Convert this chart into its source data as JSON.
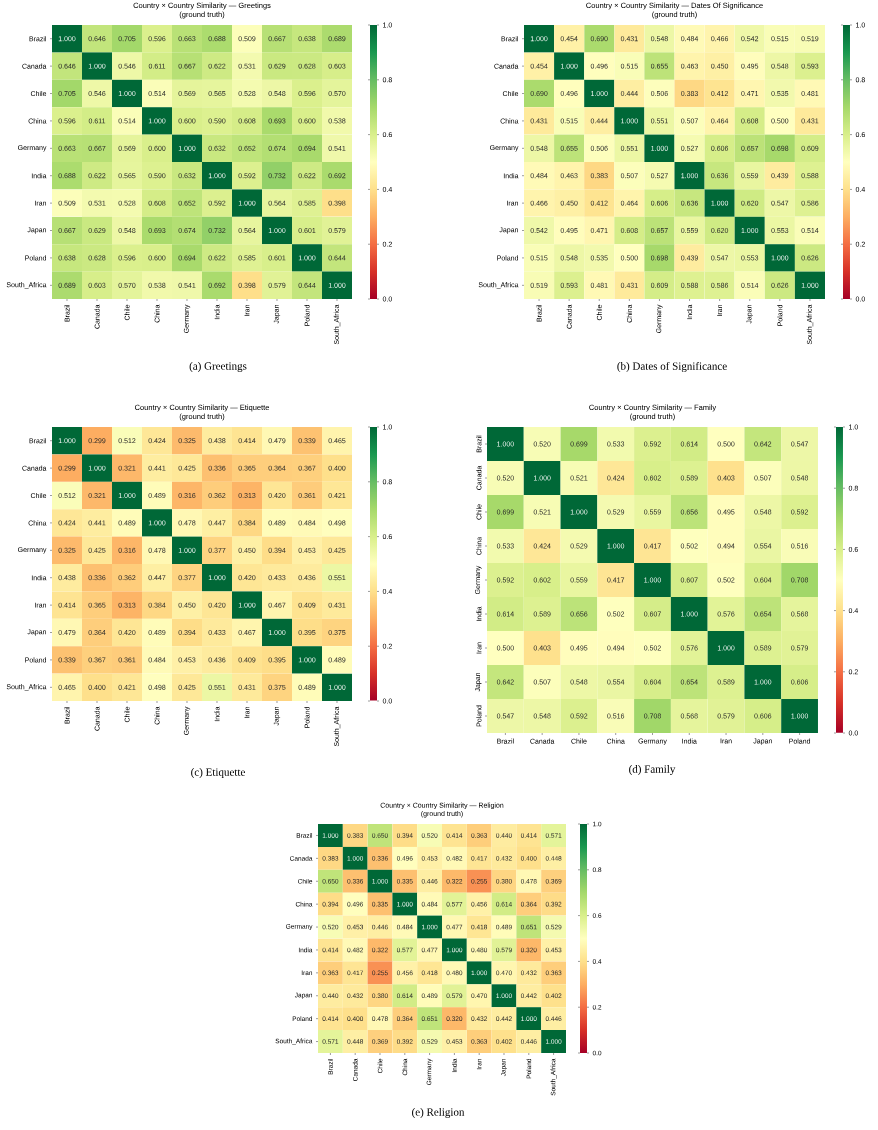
{
  "chart_data": [
    {
      "type": "heatmap",
      "title": "Country × Country Similarity — Greetings",
      "subtitle": "(ground truth)",
      "annotations": [
        "(a) Greetings"
      ],
      "categories": [
        "Brazil",
        "Canada",
        "Chile",
        "China",
        "Germany",
        "India",
        "Iran",
        "Japan",
        "Poland",
        "South_Africa"
      ],
      "y_categories": [
        "Brazil",
        "Canada",
        "Chile",
        "China",
        "Germany",
        "India",
        "Iran",
        "Japan",
        "Poland",
        "South_Africa"
      ],
      "clim": [
        0,
        1
      ],
      "cticks": [
        {
          "value": 0,
          "label": "0.0"
        },
        {
          "value": 0.2,
          "label": "0.2"
        },
        {
          "value": 0.4,
          "label": "0.4"
        },
        {
          "value": 0.6,
          "label": "0.6"
        },
        {
          "value": 0.8,
          "label": "0.8"
        },
        {
          "value": 1,
          "label": "1.0"
        }
      ],
      "cells": [
        [
          1.0,
          0.646,
          0.705,
          0.596,
          0.663,
          0.688,
          0.509,
          0.667,
          0.638,
          0.689
        ],
        [
          0.646,
          1.0,
          0.546,
          0.611,
          0.667,
          0.622,
          0.531,
          0.629,
          0.628,
          0.603
        ],
        [
          0.705,
          0.546,
          1.0,
          0.514,
          0.569,
          0.565,
          0.528,
          0.548,
          0.596,
          0.57
        ],
        [
          0.596,
          0.611,
          0.514,
          1.0,
          0.6,
          0.59,
          0.608,
          0.693,
          0.6,
          0.538
        ],
        [
          0.663,
          0.667,
          0.569,
          0.6,
          1.0,
          0.632,
          0.652,
          0.674,
          0.694,
          0.541
        ],
        [
          0.688,
          0.622,
          0.565,
          0.59,
          0.632,
          1.0,
          0.592,
          0.732,
          0.622,
          0.692
        ],
        [
          0.509,
          0.531,
          0.528,
          0.608,
          0.652,
          0.592,
          1.0,
          0.564,
          0.585,
          0.398
        ],
        [
          0.667,
          0.629,
          0.548,
          0.693,
          0.674,
          0.732,
          0.564,
          1.0,
          0.601,
          0.579
        ],
        [
          0.638,
          0.628,
          0.596,
          0.6,
          0.694,
          0.622,
          0.585,
          0.601,
          1.0,
          0.644
        ],
        [
          0.689,
          0.603,
          0.57,
          0.538,
          0.541,
          0.692,
          0.398,
          0.579,
          0.644,
          1.0
        ]
      ],
      "cell_labels": [
        [
          "1.000",
          "0.646",
          "0.705",
          "0.596",
          "0.663",
          "0.688",
          "0.509",
          "0.667",
          "0.638",
          "0.689"
        ],
        [
          "0.646",
          "1.000",
          "0.546",
          "0.611",
          "0.667",
          "0.622",
          "0.531",
          "0.629",
          "0.628",
          "0.603"
        ],
        [
          "0.705",
          "0.546",
          "1.000",
          "0.514",
          "0.569",
          "0.565",
          "0.528",
          "0.548",
          "0.596",
          "0.570"
        ],
        [
          "0.596",
          "0.611",
          "0.514",
          "1.000",
          "0.600",
          "0.590",
          "0.608",
          "0.693",
          "0.600",
          "0.538"
        ],
        [
          "0.663",
          "0.667",
          "0.569",
          "0.600",
          "1.000",
          "0.632",
          "0.652",
          "0.674",
          "0.694",
          "0.541"
        ],
        [
          "0.688",
          "0.622",
          "0.565",
          "0.590",
          "0.632",
          "1.000",
          "0.592",
          "0.732",
          "0.622",
          "0.692"
        ],
        [
          "0.509",
          "0.531",
          "0.528",
          "0.608",
          "0.652",
          "0.592",
          "1.000",
          "0.564",
          "0.585",
          "0.398"
        ],
        [
          "0.667",
          "0.629",
          "0.548",
          "0.693",
          "0.674",
          "0.732",
          "0.564",
          "1.000",
          "0.601",
          "0.579"
        ],
        [
          "0.638",
          "0.628",
          "0.596",
          "0.600",
          "0.694",
          "0.622",
          "0.585",
          "0.601",
          "1.000",
          "0.644"
        ],
        [
          "0.689",
          "0.603",
          "0.570",
          "0.538",
          "0.541",
          "0.692",
          "0.398",
          "0.579",
          "0.644",
          "1.000"
        ]
      ]
    },
    {
      "type": "heatmap",
      "title": "Country × Country Similarity — Dates Of Significance",
      "subtitle": "(ground truth)",
      "annotations": [
        "(b) Dates of Significance"
      ],
      "categories": [
        "Brazil",
        "Canada",
        "Chile",
        "China",
        "Germany",
        "India",
        "Iran",
        "Japan",
        "Poland",
        "South_Africa"
      ],
      "y_categories": [
        "Brazil",
        "Canada",
        "Chile",
        "China",
        "Germany",
        "India",
        "Iran",
        "Japan",
        "Poland",
        "South_Africa"
      ],
      "clim": [
        0,
        1
      ],
      "cticks": [
        {
          "value": 0,
          "label": "0.0"
        },
        {
          "value": 0.2,
          "label": "0.2"
        },
        {
          "value": 0.4,
          "label": "0.4"
        },
        {
          "value": 0.6,
          "label": "0.6"
        },
        {
          "value": 0.8,
          "label": "0.8"
        },
        {
          "value": 1,
          "label": "1.0"
        }
      ],
      "cells": [
        [
          1.0,
          0.454,
          0.69,
          0.431,
          0.548,
          0.484,
          0.466,
          0.542,
          0.515,
          0.519
        ],
        [
          0.454,
          1.0,
          0.496,
          0.515,
          0.655,
          0.463,
          0.45,
          0.495,
          0.548,
          0.593
        ],
        [
          0.69,
          0.496,
          1.0,
          0.444,
          0.506,
          0.383,
          0.412,
          0.471,
          0.535,
          0.481
        ],
        [
          0.431,
          0.515,
          0.444,
          1.0,
          0.551,
          0.507,
          0.464,
          0.608,
          0.5,
          0.431
        ],
        [
          0.548,
          0.655,
          0.506,
          0.551,
          1.0,
          0.527,
          0.606,
          0.657,
          0.698,
          0.609
        ],
        [
          0.484,
          0.463,
          0.383,
          0.507,
          0.527,
          1.0,
          0.636,
          0.559,
          0.439,
          0.588
        ],
        [
          0.466,
          0.45,
          0.412,
          0.464,
          0.606,
          0.636,
          1.0,
          0.62,
          0.547,
          0.586
        ],
        [
          0.542,
          0.495,
          0.471,
          0.608,
          0.657,
          0.559,
          0.62,
          1.0,
          0.553,
          0.514
        ],
        [
          0.515,
          0.548,
          0.535,
          0.5,
          0.698,
          0.439,
          0.547,
          0.553,
          1.0,
          0.626
        ],
        [
          0.519,
          0.593,
          0.481,
          0.431,
          0.609,
          0.588,
          0.586,
          0.514,
          0.626,
          1.0
        ]
      ],
      "cell_labels": [
        [
          "1.000",
          "0.454",
          "0.690",
          "0.431",
          "0.548",
          "0.484",
          "0.466",
          "0.542",
          "0.515",
          "0.519"
        ],
        [
          "0.454",
          "1.000",
          "0.496",
          "0.515",
          "0.655",
          "0.463",
          "0.450",
          "0.495",
          "0.548",
          "0.593"
        ],
        [
          "0.690",
          "0.496",
          "1.000",
          "0.444",
          "0.506",
          "0.383",
          "0.412",
          "0.471",
          "0.535",
          "0.481"
        ],
        [
          "0.431",
          "0.515",
          "0.444",
          "1.000",
          "0.551",
          "0.507",
          "0.464",
          "0.608",
          "0.500",
          "0.431"
        ],
        [
          "0.548",
          "0.655",
          "0.506",
          "0.551",
          "1.000",
          "0.527",
          "0.606",
          "0.657",
          "0.698",
          "0.609"
        ],
        [
          "0.484",
          "0.463",
          "0.383",
          "0.507",
          "0.527",
          "1.000",
          "0.636",
          "0.559",
          "0.439",
          "0.588"
        ],
        [
          "0.466",
          "0.450",
          "0.412",
          "0.464",
          "0.606",
          "0.636",
          "1.000",
          "0.620",
          "0.547",
          "0.586"
        ],
        [
          "0.542",
          "0.495",
          "0.471",
          "0.608",
          "0.657",
          "0.559",
          "0.620",
          "1.000",
          "0.553",
          "0.514"
        ],
        [
          "0.515",
          "0.548",
          "0.535",
          "0.500",
          "0.698",
          "0.439",
          "0.547",
          "0.553",
          "1.000",
          "0.626"
        ],
        [
          "0.519",
          "0.593",
          "0.481",
          "0.431",
          "0.609",
          "0.588",
          "0.586",
          "0.514",
          "0.626",
          "1.000"
        ]
      ]
    },
    {
      "type": "heatmap",
      "title": "Country × Country Similarity — Etiquette",
      "subtitle": "(ground truth)",
      "annotations": [
        "(c) Etiquette"
      ],
      "categories": [
        "Brazil",
        "Canada",
        "Chile",
        "China",
        "Germany",
        "India",
        "Iran",
        "Japan",
        "Poland",
        "South_Africa"
      ],
      "y_categories": [
        "Brazil",
        "Canada",
        "Chile",
        "China",
        "Germany",
        "India",
        "Iran",
        "Japan",
        "Poland",
        "South_Africa"
      ],
      "clim": [
        0,
        1
      ],
      "cticks": [
        {
          "value": 0,
          "label": "0.0"
        },
        {
          "value": 0.2,
          "label": "0.2"
        },
        {
          "value": 0.4,
          "label": "0.4"
        },
        {
          "value": 0.6,
          "label": "0.6"
        },
        {
          "value": 0.8,
          "label": "0.8"
        },
        {
          "value": 1,
          "label": "1.0"
        }
      ],
      "cells": [
        [
          1.0,
          0.299,
          0.512,
          0.424,
          0.325,
          0.438,
          0.414,
          0.479,
          0.339,
          0.465
        ],
        [
          0.299,
          1.0,
          0.321,
          0.441,
          0.425,
          0.336,
          0.365,
          0.364,
          0.367,
          0.4
        ],
        [
          0.512,
          0.321,
          1.0,
          0.489,
          0.316,
          0.362,
          0.313,
          0.42,
          0.361,
          0.421
        ],
        [
          0.424,
          0.441,
          0.489,
          1.0,
          0.478,
          0.447,
          0.384,
          0.489,
          0.484,
          0.498
        ],
        [
          0.325,
          0.425,
          0.316,
          0.478,
          1.0,
          0.377,
          0.45,
          0.394,
          0.453,
          0.425
        ],
        [
          0.438,
          0.336,
          0.362,
          0.447,
          0.377,
          1.0,
          0.42,
          0.433,
          0.436,
          0.551
        ],
        [
          0.414,
          0.365,
          0.313,
          0.384,
          0.45,
          0.42,
          1.0,
          0.467,
          0.409,
          0.431
        ],
        [
          0.479,
          0.364,
          0.42,
          0.489,
          0.394,
          0.433,
          0.467,
          1.0,
          0.395,
          0.375
        ],
        [
          0.339,
          0.367,
          0.361,
          0.484,
          0.453,
          0.436,
          0.409,
          0.395,
          1.0,
          0.489
        ],
        [
          0.465,
          0.4,
          0.421,
          0.498,
          0.425,
          0.551,
          0.431,
          0.375,
          0.489,
          1.0
        ]
      ],
      "cell_labels": [
        [
          "1.000",
          "0.299",
          "0.512",
          "0.424",
          "0.325",
          "0.438",
          "0.414",
          "0.479",
          "0.339",
          "0.465"
        ],
        [
          "0.299",
          "1.000",
          "0.321",
          "0.441",
          "0.425",
          "0.336",
          "0.365",
          "0.364",
          "0.367",
          "0.400"
        ],
        [
          "0.512",
          "0.321",
          "1.000",
          "0.489",
          "0.316",
          "0.362",
          "0.313",
          "0.420",
          "0.361",
          "0.421"
        ],
        [
          "0.424",
          "0.441",
          "0.489",
          "1.000",
          "0.478",
          "0.447",
          "0.384",
          "0.489",
          "0.484",
          "0.498"
        ],
        [
          "0.325",
          "0.425",
          "0.316",
          "0.478",
          "1.000",
          "0.377",
          "0.450",
          "0.394",
          "0.453",
          "0.425"
        ],
        [
          "0.438",
          "0.336",
          "0.362",
          "0.447",
          "0.377",
          "1.000",
          "0.420",
          "0.433",
          "0.436",
          "0.551"
        ],
        [
          "0.414",
          "0.365",
          "0.313",
          "0.384",
          "0.450",
          "0.420",
          "1.000",
          "0.467",
          "0.409",
          "0.431"
        ],
        [
          "0.479",
          "0.364",
          "0.420",
          "0.489",
          "0.394",
          "0.433",
          "0.467",
          "1.000",
          "0.395",
          "0.375"
        ],
        [
          "0.339",
          "0.367",
          "0.361",
          "0.484",
          "0.453",
          "0.436",
          "0.409",
          "0.395",
          "1.000",
          "0.489"
        ],
        [
          "0.465",
          "0.400",
          "0.421",
          "0.498",
          "0.425",
          "0.551",
          "0.431",
          "0.375",
          "0.489",
          "1.000"
        ]
      ]
    },
    {
      "type": "heatmap",
      "title": "Country × Country Similarity — Family",
      "subtitle": "(ground truth)",
      "annotations": [
        "(d) Family"
      ],
      "categories": [
        "Brazil",
        "Canada",
        "Chile",
        "China",
        "Germany",
        "India",
        "Iran",
        "Japan",
        "Poland"
      ],
      "y_categories": [
        "Brazil",
        "Canada",
        "Chile",
        "China",
        "Germany",
        "India",
        "Iran",
        "Japan",
        "Poland"
      ],
      "clim": [
        0,
        1
      ],
      "cticks": [
        {
          "value": 0,
          "label": "0.0"
        },
        {
          "value": 0.2,
          "label": "0.2"
        },
        {
          "value": 0.4,
          "label": "0.4"
        },
        {
          "value": 0.6,
          "label": "0.6"
        },
        {
          "value": 0.8,
          "label": "0.8"
        },
        {
          "value": 1,
          "label": "1.0"
        }
      ],
      "cells": [
        [
          1.0,
          0.52,
          0.699,
          0.533,
          0.592,
          0.614,
          0.5,
          0.642,
          0.547
        ],
        [
          0.52,
          1.0,
          0.521,
          0.424,
          0.602,
          0.589,
          0.403,
          0.507,
          0.548
        ],
        [
          0.699,
          0.521,
          1.0,
          0.529,
          0.559,
          0.656,
          0.495,
          0.548,
          0.592
        ],
        [
          0.533,
          0.424,
          0.529,
          1.0,
          0.417,
          0.502,
          0.494,
          0.554,
          0.516
        ],
        [
          0.592,
          0.602,
          0.559,
          0.417,
          1.0,
          0.607,
          0.502,
          0.604,
          0.708
        ],
        [
          0.614,
          0.589,
          0.656,
          0.502,
          0.607,
          1.0,
          0.576,
          0.654,
          0.568
        ],
        [
          0.5,
          0.403,
          0.495,
          0.494,
          0.502,
          0.576,
          1.0,
          0.589,
          0.579
        ],
        [
          0.642,
          0.507,
          0.548,
          0.554,
          0.604,
          0.654,
          0.589,
          1.0,
          0.606
        ],
        [
          0.547,
          0.548,
          0.592,
          0.516,
          0.708,
          0.568,
          0.579,
          0.606,
          1.0
        ]
      ],
      "cell_labels": [
        [
          "1.000",
          "0.520",
          "0.699",
          "0.533",
          "0.592",
          "0.614",
          "0.500",
          "0.642",
          "0.547"
        ],
        [
          "0.520",
          "1.000",
          "0.521",
          "0.424",
          "0.602",
          "0.589",
          "0.403",
          "0.507",
          "0.548"
        ],
        [
          "0.699",
          "0.521",
          "1.000",
          "0.529",
          "0.559",
          "0.656",
          "0.495",
          "0.548",
          "0.592"
        ],
        [
          "0.533",
          "0.424",
          "0.529",
          "1.000",
          "0.417",
          "0.502",
          "0.494",
          "0.554",
          "0.516"
        ],
        [
          "0.592",
          "0.602",
          "0.559",
          "0.417",
          "1.000",
          "0.607",
          "0.502",
          "0.604",
          "0.708"
        ],
        [
          "0.614",
          "0.589",
          "0.656",
          "0.502",
          "0.607",
          "1.000",
          "0.576",
          "0.654",
          "0.568"
        ],
        [
          "0.500",
          "0.403",
          "0.495",
          "0.494",
          "0.502",
          "0.576",
          "1.000",
          "0.589",
          "0.579"
        ],
        [
          "0.642",
          "0.507",
          "0.548",
          "0.554",
          "0.604",
          "0.654",
          "0.589",
          "1.000",
          "0.606"
        ],
        [
          "0.547",
          "0.548",
          "0.592",
          "0.516",
          "0.708",
          "0.568",
          "0.579",
          "0.606",
          "1.000"
        ]
      ]
    },
    {
      "type": "heatmap",
      "title": "Country × Country Similarity — Religion",
      "subtitle": "(ground truth)",
      "annotations": [
        "(e) Religion"
      ],
      "categories": [
        "Brazil",
        "Canada",
        "Chile",
        "China",
        "Germany",
        "India",
        "Iran",
        "Japan",
        "Poland",
        "South_Africa"
      ],
      "y_categories": [
        "Brazil",
        "Canada",
        "Chile",
        "China",
        "Germany",
        "India",
        "Iran",
        "Japan",
        "Poland",
        "South_Africa"
      ],
      "clim": [
        0,
        1
      ],
      "cticks": [
        {
          "value": 0,
          "label": "0.0"
        },
        {
          "value": 0.2,
          "label": "0.2"
        },
        {
          "value": 0.4,
          "label": "0.4"
        },
        {
          "value": 0.6,
          "label": "0.6"
        },
        {
          "value": 0.8,
          "label": "0.8"
        },
        {
          "value": 1,
          "label": "1.0"
        }
      ],
      "cells": [
        [
          1.0,
          0.383,
          0.65,
          0.394,
          0.52,
          0.414,
          0.363,
          0.44,
          0.414,
          0.571
        ],
        [
          0.383,
          1.0,
          0.336,
          0.496,
          0.453,
          0.482,
          0.417,
          0.432,
          0.4,
          0.448
        ],
        [
          0.65,
          0.336,
          1.0,
          0.335,
          0.446,
          0.322,
          0.255,
          0.38,
          0.478,
          0.369
        ],
        [
          0.394,
          0.496,
          0.335,
          1.0,
          0.484,
          0.577,
          0.456,
          0.614,
          0.364,
          0.392
        ],
        [
          0.52,
          0.453,
          0.446,
          0.484,
          1.0,
          0.477,
          0.418,
          0.489,
          0.651,
          0.529
        ],
        [
          0.414,
          0.482,
          0.322,
          0.577,
          0.477,
          1.0,
          0.48,
          0.579,
          0.32,
          0.453
        ],
        [
          0.363,
          0.417,
          0.255,
          0.456,
          0.418,
          0.48,
          1.0,
          0.47,
          0.432,
          0.363
        ],
        [
          0.44,
          0.432,
          0.38,
          0.614,
          0.489,
          0.579,
          0.47,
          1.0,
          0.442,
          0.402
        ],
        [
          0.414,
          0.4,
          0.478,
          0.364,
          0.651,
          0.32,
          0.432,
          0.442,
          1.0,
          0.446
        ],
        [
          0.571,
          0.448,
          0.369,
          0.392,
          0.529,
          0.453,
          0.363,
          0.402,
          0.446,
          1.0
        ]
      ],
      "cell_labels": [
        [
          "1.000",
          "0.383",
          "0.650",
          "0.394",
          "0.520",
          "0.414",
          "0.363",
          "0.440",
          "0.414",
          "0.571"
        ],
        [
          "0.383",
          "1.000",
          "0.336",
          "0.496",
          "0.453",
          "0.482",
          "0.417",
          "0.432",
          "0.400",
          "0.448"
        ],
        [
          "0.650",
          "0.336",
          "1.000",
          "0.335",
          "0.446",
          "0.322",
          "0.255",
          "0.380",
          "0.478",
          "0.369"
        ],
        [
          "0.394",
          "0.496",
          "0.335",
          "1.000",
          "0.484",
          "0.577",
          "0.456",
          "0.614",
          "0.364",
          "0.392"
        ],
        [
          "0.520",
          "0.453",
          "0.446",
          "0.484",
          "1.000",
          "0.477",
          "0.418",
          "0.489",
          "0.651",
          "0.529"
        ],
        [
          "0.414",
          "0.482",
          "0.322",
          "0.577",
          "0.477",
          "1.000",
          "0.480",
          "0.579",
          "0.320",
          "0.453"
        ],
        [
          "0.363",
          "0.417",
          "0.255",
          "0.456",
          "0.418",
          "0.480",
          "1.000",
          "0.470",
          "0.432",
          "0.363"
        ],
        [
          "0.440",
          "0.432",
          "0.380",
          "0.614",
          "0.489",
          "0.579",
          "0.470",
          "1.000",
          "0.442",
          "0.402"
        ],
        [
          "0.414",
          "0.400",
          "0.478",
          "0.364",
          "0.651",
          "0.320",
          "0.432",
          "0.442",
          "1.000",
          "0.446"
        ],
        [
          "0.571",
          "0.448",
          "0.369",
          "0.392",
          "0.529",
          "0.453",
          "0.363",
          "0.402",
          "0.446",
          "1.000"
        ]
      ]
    }
  ]
}
